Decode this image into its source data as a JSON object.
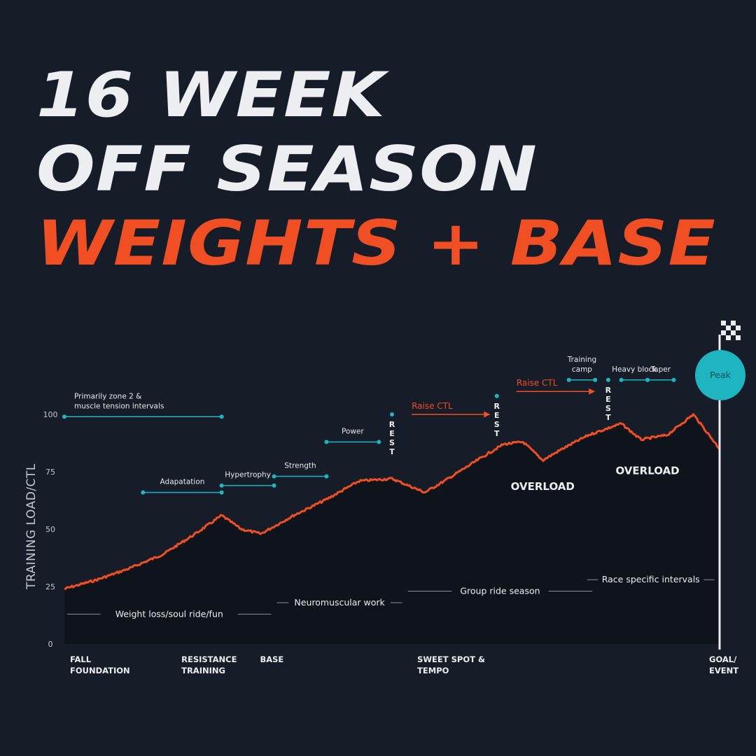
{
  "title": {
    "line1": "16 WEEK",
    "line2": "OFF SEASON",
    "line3": "WEIGHTS + BASE"
  },
  "colors": {
    "background": "#161d29",
    "accent": "#f04e23",
    "teal": "#1fb5c0",
    "area": "#0e131c",
    "text": "#eceef1"
  },
  "chart_data": {
    "type": "area",
    "ylabel": "TRAINING LOAD/CTL",
    "yticks": [
      "100",
      "75",
      "50",
      "25",
      "0"
    ],
    "ytick_values": [
      100,
      75,
      50,
      25,
      0
    ],
    "ylim": [
      0,
      100
    ],
    "xlim": [
      0,
      100
    ],
    "x": [
      0,
      5,
      10,
      15,
      20,
      24,
      27,
      30,
      35,
      40,
      45,
      50,
      55,
      58,
      63,
      67,
      70,
      73,
      76,
      80,
      85,
      88,
      92,
      96,
      100
    ],
    "y": [
      24,
      28,
      33,
      39,
      48,
      56,
      50,
      48,
      56,
      63,
      71,
      72,
      66,
      71,
      80,
      87,
      88,
      80,
      85,
      91,
      96,
      89,
      91,
      100,
      85
    ],
    "x_categories": [
      {
        "lines": [
          "FALL",
          "FOUNDATION"
        ],
        "x": 0
      },
      {
        "lines": [
          "RESISTANCE",
          "TRAINING"
        ],
        "x": 17
      },
      {
        "lines": [
          "BASE"
        ],
        "x": 29
      },
      {
        "lines": [
          "SWEET SPOT &",
          "TEMPO"
        ],
        "x": 53
      },
      {
        "lines": [
          "GOAL/",
          "EVENT"
        ],
        "x": 99
      }
    ],
    "annotations": [
      {
        "label": [
          "Primarily zone 2 &",
          "muscle tension intervals"
        ],
        "x1": 0,
        "x2": 24,
        "y": 99
      },
      {
        "label": [
          "Adapatation"
        ],
        "x1": 12,
        "x2": 24,
        "y": 66
      },
      {
        "label": [
          "Hypertrophy"
        ],
        "x1": 24,
        "x2": 32,
        "y": 69
      },
      {
        "label": [
          "Strength"
        ],
        "x1": 32,
        "x2": 40,
        "y": 73
      },
      {
        "label": [
          "Power"
        ],
        "x1": 40,
        "x2": 48,
        "y": 88
      },
      {
        "label": [
          "Training",
          "camp"
        ],
        "x1": 77,
        "x2": 81,
        "y": 115
      },
      {
        "label": [
          "Heavy block"
        ],
        "x1": 85,
        "x2": 89,
        "y": 115
      },
      {
        "label": [
          "Taper"
        ],
        "x1": 89,
        "x2": 93,
        "y": 115
      }
    ],
    "raise_ctl": [
      {
        "label": "Raise CTL",
        "x1": 53,
        "x2": 65,
        "y": 100
      },
      {
        "label": "Raise CTL",
        "x1": 69,
        "x2": 81,
        "y": 110
      }
    ],
    "rest_markers": [
      {
        "label": "REST",
        "x": 50,
        "y": 100
      },
      {
        "label": "REST",
        "x": 66,
        "y": 108
      },
      {
        "label": "REST",
        "x": 83,
        "y": 115
      }
    ],
    "overload_labels": [
      {
        "label": "OVERLOAD",
        "x": 73,
        "y": 67
      },
      {
        "label": "OVERLOAD",
        "x": 89,
        "y": 74
      }
    ],
    "bottom_ranges": [
      {
        "label": "Weight loss/soul ride/fun",
        "x1": 0,
        "x2": 32,
        "y": 13
      },
      {
        "label": "Neuromuscular work",
        "x1": 32,
        "x2": 52,
        "y": 18
      },
      {
        "label": "Group ride season",
        "x1": 52,
        "x2": 81,
        "y": 23
      },
      {
        "label": "Race specific intervals",
        "x1": 81,
        "x2": 98,
        "y": 28
      }
    ],
    "peak_label": "Peak",
    "grid": false
  }
}
